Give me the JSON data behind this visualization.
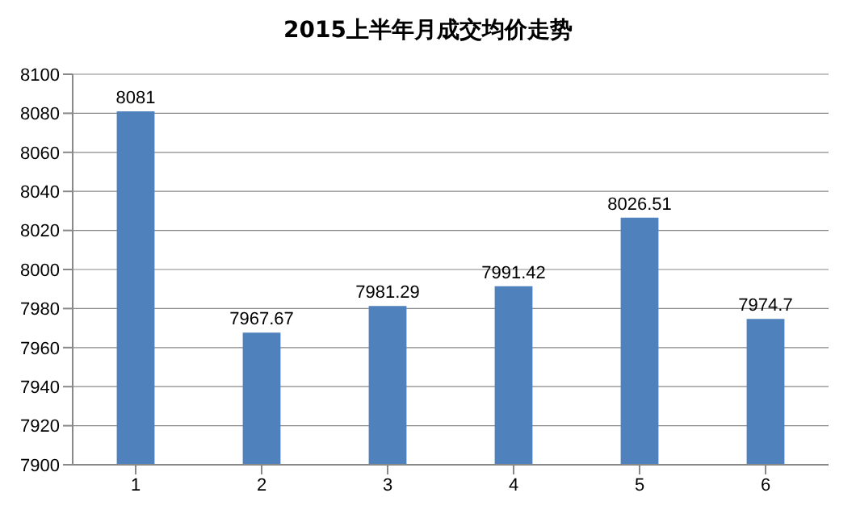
{
  "chart_data": {
    "type": "bar",
    "title": "2015上半年月成交均价走势",
    "categories": [
      "1",
      "2",
      "3",
      "4",
      "5",
      "6"
    ],
    "values": [
      8081,
      7967.67,
      7981.29,
      7991.42,
      8026.51,
      7974.7
    ],
    "color": "#4f81bd",
    "ylim": [
      7900,
      8100
    ],
    "yticks": [
      7900,
      7920,
      7940,
      7960,
      7980,
      8000,
      8020,
      8040,
      8060,
      8080,
      8100
    ],
    "grid": "y",
    "data_labels": true
  }
}
